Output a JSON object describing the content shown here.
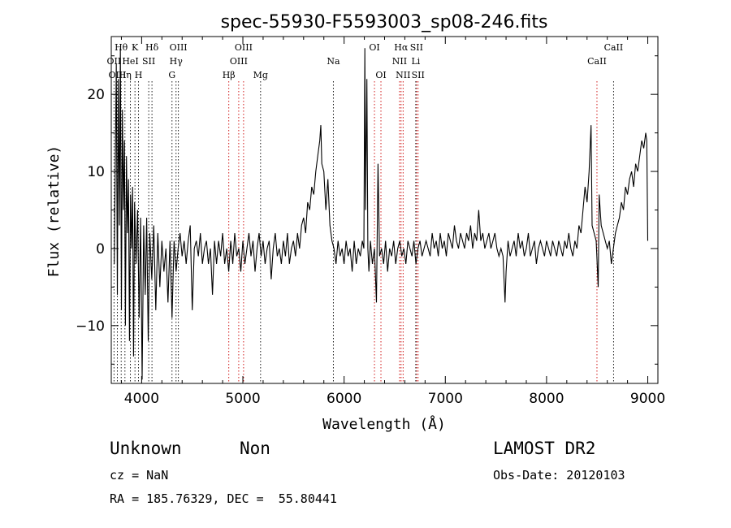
{
  "chart_data": {
    "type": "line",
    "title": "spec-55930-F5593003_sp08-246.fits",
    "xlabel": "Wavelength (Å)",
    "ylabel": "Flux (relative)",
    "xlim": [
      3700,
      9100
    ],
    "ylim": [
      -17.5,
      27.5
    ],
    "x_ticks": [
      4000,
      5000,
      6000,
      7000,
      8000,
      9000
    ],
    "y_ticks": [
      -10,
      0,
      10,
      20
    ],
    "grid": false,
    "series": [
      {
        "color": "#000000",
        "points": [
          [
            3730,
            -2
          ],
          [
            3750,
            24
          ],
          [
            3760,
            -6
          ],
          [
            3770,
            22
          ],
          [
            3780,
            3
          ],
          [
            3790,
            26
          ],
          [
            3800,
            -8
          ],
          [
            3810,
            18
          ],
          [
            3820,
            5
          ],
          [
            3830,
            14
          ],
          [
            3840,
            -10
          ],
          [
            3850,
            12
          ],
          [
            3860,
            2
          ],
          [
            3870,
            9
          ],
          [
            3880,
            -12
          ],
          [
            3890,
            7
          ],
          [
            3900,
            0
          ],
          [
            3910,
            8
          ],
          [
            3920,
            -14
          ],
          [
            3930,
            6
          ],
          [
            3945,
            -2
          ],
          [
            3960,
            5
          ],
          [
            3975,
            -9
          ],
          [
            3990,
            4
          ],
          [
            4005,
            -17
          ],
          [
            4020,
            3
          ],
          [
            4035,
            -6
          ],
          [
            4050,
            4
          ],
          [
            4065,
            -12
          ],
          [
            4080,
            2
          ],
          [
            4100,
            -4
          ],
          [
            4120,
            3
          ],
          [
            4140,
            -8
          ],
          [
            4160,
            2
          ],
          [
            4180,
            -5
          ],
          [
            4200,
            1
          ],
          [
            4220,
            -3
          ],
          [
            4240,
            0
          ],
          [
            4260,
            -7
          ],
          [
            4280,
            1
          ],
          [
            4300,
            -9
          ],
          [
            4320,
            1
          ],
          [
            4340,
            -3
          ],
          [
            4360,
            0
          ],
          [
            4380,
            2
          ],
          [
            4400,
            -1
          ],
          [
            4420,
            1
          ],
          [
            4440,
            -2
          ],
          [
            4460,
            1
          ],
          [
            4480,
            3
          ],
          [
            4500,
            -8
          ],
          [
            4520,
            0
          ],
          [
            4540,
            1
          ],
          [
            4560,
            -1
          ],
          [
            4580,
            2
          ],
          [
            4600,
            -2
          ],
          [
            4620,
            0
          ],
          [
            4640,
            1
          ],
          [
            4660,
            -2
          ],
          [
            4680,
            0
          ],
          [
            4700,
            -6
          ],
          [
            4720,
            1
          ],
          [
            4740,
            -2
          ],
          [
            4760,
            1
          ],
          [
            4780,
            -1
          ],
          [
            4800,
            2
          ],
          [
            4820,
            -2
          ],
          [
            4840,
            0
          ],
          [
            4860,
            -3
          ],
          [
            4880,
            1
          ],
          [
            4900,
            -2
          ],
          [
            4920,
            2
          ],
          [
            4940,
            -1
          ],
          [
            4960,
            0
          ],
          [
            4980,
            -3
          ],
          [
            5000,
            1
          ],
          [
            5020,
            -2
          ],
          [
            5040,
            0
          ],
          [
            5060,
            2
          ],
          [
            5080,
            -1
          ],
          [
            5100,
            1
          ],
          [
            5120,
            -3
          ],
          [
            5140,
            0
          ],
          [
            5160,
            2
          ],
          [
            5180,
            -1
          ],
          [
            5200,
            1
          ],
          [
            5220,
            -2
          ],
          [
            5240,
            0
          ],
          [
            5260,
            1
          ],
          [
            5280,
            -4
          ],
          [
            5300,
            0
          ],
          [
            5320,
            2
          ],
          [
            5340,
            -1
          ],
          [
            5360,
            0
          ],
          [
            5380,
            -2
          ],
          [
            5400,
            1
          ],
          [
            5420,
            -1
          ],
          [
            5440,
            2
          ],
          [
            5460,
            -2
          ],
          [
            5480,
            0
          ],
          [
            5500,
            1
          ],
          [
            5520,
            -1
          ],
          [
            5540,
            2
          ],
          [
            5560,
            0
          ],
          [
            5580,
            3
          ],
          [
            5600,
            4
          ],
          [
            5620,
            2
          ],
          [
            5640,
            6
          ],
          [
            5660,
            5
          ],
          [
            5680,
            8
          ],
          [
            5700,
            7
          ],
          [
            5720,
            10
          ],
          [
            5740,
            12
          ],
          [
            5760,
            14
          ],
          [
            5770,
            16
          ],
          [
            5780,
            11
          ],
          [
            5800,
            10
          ],
          [
            5820,
            5
          ],
          [
            5840,
            9
          ],
          [
            5860,
            3
          ],
          [
            5880,
            1
          ],
          [
            5900,
            0
          ],
          [
            5920,
            -2
          ],
          [
            5940,
            1
          ],
          [
            5960,
            -1
          ],
          [
            5980,
            0
          ],
          [
            6000,
            -2
          ],
          [
            6020,
            1
          ],
          [
            6040,
            -1
          ],
          [
            6060,
            0
          ],
          [
            6080,
            -3
          ],
          [
            6100,
            1
          ],
          [
            6120,
            -2
          ],
          [
            6140,
            0
          ],
          [
            6160,
            -1
          ],
          [
            6180,
            1
          ],
          [
            6195,
            0
          ],
          [
            6205,
            26
          ],
          [
            6212,
            5
          ],
          [
            6225,
            22
          ],
          [
            6235,
            0
          ],
          [
            6245,
            -3
          ],
          [
            6260,
            1
          ],
          [
            6280,
            -2
          ],
          [
            6300,
            0
          ],
          [
            6320,
            -7
          ],
          [
            6335,
            11
          ],
          [
            6350,
            -1
          ],
          [
            6370,
            0
          ],
          [
            6390,
            -2
          ],
          [
            6410,
            1
          ],
          [
            6430,
            -3
          ],
          [
            6450,
            0
          ],
          [
            6470,
            -1
          ],
          [
            6490,
            1
          ],
          [
            6510,
            -2
          ],
          [
            6530,
            0
          ],
          [
            6550,
            1
          ],
          [
            6570,
            -1
          ],
          [
            6590,
            0
          ],
          [
            6610,
            -2
          ],
          [
            6630,
            1
          ],
          [
            6650,
            0
          ],
          [
            6670,
            -1
          ],
          [
            6690,
            1
          ],
          [
            6710,
            -2
          ],
          [
            6730,
            0
          ],
          [
            6750,
            1
          ],
          [
            6770,
            -1
          ],
          [
            6790,
            0
          ],
          [
            6810,
            1
          ],
          [
            6830,
            0
          ],
          [
            6850,
            -1
          ],
          [
            6870,
            2
          ],
          [
            6890,
            0
          ],
          [
            6910,
            1
          ],
          [
            6930,
            -1
          ],
          [
            6950,
            2
          ],
          [
            6970,
            0
          ],
          [
            6990,
            1
          ],
          [
            7010,
            -1
          ],
          [
            7030,
            2
          ],
          [
            7050,
            1
          ],
          [
            7070,
            0
          ],
          [
            7090,
            3
          ],
          [
            7110,
            1
          ],
          [
            7130,
            0
          ],
          [
            7150,
            2
          ],
          [
            7170,
            1
          ],
          [
            7190,
            0
          ],
          [
            7210,
            2
          ],
          [
            7230,
            1
          ],
          [
            7250,
            3
          ],
          [
            7270,
            0
          ],
          [
            7290,
            2
          ],
          [
            7310,
            1
          ],
          [
            7330,
            5
          ],
          [
            7350,
            1
          ],
          [
            7370,
            2
          ],
          [
            7390,
            0
          ],
          [
            7410,
            1
          ],
          [
            7430,
            2
          ],
          [
            7450,
            0
          ],
          [
            7470,
            1
          ],
          [
            7490,
            2
          ],
          [
            7510,
            0
          ],
          [
            7530,
            -1
          ],
          [
            7550,
            0
          ],
          [
            7570,
            -1
          ],
          [
            7590,
            -7
          ],
          [
            7600,
            -3
          ],
          [
            7620,
            1
          ],
          [
            7640,
            -1
          ],
          [
            7660,
            0
          ],
          [
            7680,
            1
          ],
          [
            7700,
            -1
          ],
          [
            7720,
            2
          ],
          [
            7740,
            0
          ],
          [
            7760,
            1
          ],
          [
            7780,
            -1
          ],
          [
            7800,
            0
          ],
          [
            7820,
            2
          ],
          [
            7840,
            -1
          ],
          [
            7860,
            0
          ],
          [
            7880,
            1
          ],
          [
            7900,
            -2
          ],
          [
            7920,
            0
          ],
          [
            7940,
            1
          ],
          [
            7960,
            0
          ],
          [
            7980,
            -1
          ],
          [
            8000,
            1
          ],
          [
            8020,
            0
          ],
          [
            8040,
            -1
          ],
          [
            8060,
            1
          ],
          [
            8080,
            0
          ],
          [
            8100,
            -1
          ],
          [
            8120,
            1
          ],
          [
            8140,
            0
          ],
          [
            8160,
            -1
          ],
          [
            8180,
            1
          ],
          [
            8200,
            0
          ],
          [
            8220,
            2
          ],
          [
            8240,
            0
          ],
          [
            8260,
            -1
          ],
          [
            8280,
            1
          ],
          [
            8300,
            0
          ],
          [
            8320,
            3
          ],
          [
            8340,
            2
          ],
          [
            8360,
            5
          ],
          [
            8380,
            8
          ],
          [
            8400,
            6
          ],
          [
            8420,
            10
          ],
          [
            8440,
            16
          ],
          [
            8450,
            3
          ],
          [
            8470,
            2
          ],
          [
            8490,
            1
          ],
          [
            8510,
            -5
          ],
          [
            8520,
            7
          ],
          [
            8540,
            3
          ],
          [
            8560,
            2
          ],
          [
            8580,
            1
          ],
          [
            8600,
            0
          ],
          [
            8620,
            1
          ],
          [
            8640,
            -2
          ],
          [
            8660,
            0
          ],
          [
            8680,
            2
          ],
          [
            8700,
            3
          ],
          [
            8720,
            4
          ],
          [
            8740,
            6
          ],
          [
            8760,
            5
          ],
          [
            8780,
            8
          ],
          [
            8800,
            7
          ],
          [
            8820,
            9
          ],
          [
            8840,
            10
          ],
          [
            8860,
            8
          ],
          [
            8880,
            11
          ],
          [
            8900,
            10
          ],
          [
            8920,
            12
          ],
          [
            8940,
            14
          ],
          [
            8960,
            13
          ],
          [
            8980,
            15
          ],
          [
            8990,
            14
          ],
          [
            9000,
            1
          ]
        ]
      }
    ],
    "lines": [
      {
        "label": "Hθ",
        "x": 3798,
        "row": 0,
        "color": "#000000"
      },
      {
        "label": "K",
        "x": 3934,
        "row": 0,
        "color": "#000000"
      },
      {
        "label": "Hδ",
        "x": 4102,
        "row": 0,
        "color": "#000000"
      },
      {
        "label": "OII",
        "x": 3727,
        "row": 1,
        "color": "#000000"
      },
      {
        "label": "HeI",
        "x": 3889,
        "row": 1,
        "color": "#000000"
      },
      {
        "label": "SII",
        "x": 4070,
        "row": 1,
        "color": "#000000"
      },
      {
        "label": "OIII",
        "x": 3760,
        "row": 2,
        "color": "#000000"
      },
      {
        "label": "Hη",
        "x": 3835,
        "row": 2,
        "color": "#000000"
      },
      {
        "label": "H",
        "x": 3969,
        "row": 2,
        "color": "#000000"
      },
      {
        "label": "OIII",
        "x": 4363,
        "row": 0,
        "color": "#000000"
      },
      {
        "label": "Hγ",
        "x": 4340,
        "row": 1,
        "color": "#000000"
      },
      {
        "label": "G",
        "x": 4300,
        "row": 2,
        "color": "#000000"
      },
      {
        "label": "OIII",
        "x": 5007,
        "row": 0,
        "color": "#cc0000"
      },
      {
        "label": "OIII",
        "x": 4959,
        "row": 1,
        "color": "#cc0000"
      },
      {
        "label": "Hβ",
        "x": 4861,
        "row": 2,
        "color": "#cc0000"
      },
      {
        "label": "Mg",
        "x": 5175,
        "row": 2,
        "color": "#000000"
      },
      {
        "label": "Na",
        "x": 5894,
        "row": 1,
        "color": "#000000"
      },
      {
        "label": "OI",
        "x": 6300,
        "row": 0,
        "color": "#cc0000"
      },
      {
        "label": "OI",
        "x": 6364,
        "row": 2,
        "color": "#cc0000"
      },
      {
        "label": "Hα",
        "x": 6563,
        "row": 0,
        "color": "#cc0000"
      },
      {
        "label": "SII",
        "x": 6716,
        "row": 0,
        "color": "#cc0000"
      },
      {
        "label": "NII",
        "x": 6548,
        "row": 1,
        "color": "#cc0000"
      },
      {
        "label": "Li",
        "x": 6708,
        "row": 1,
        "color": "#000000"
      },
      {
        "label": "NII",
        "x": 6583,
        "row": 2,
        "color": "#cc0000"
      },
      {
        "label": "SII",
        "x": 6731,
        "row": 2,
        "color": "#cc0000"
      },
      {
        "label": "CaII",
        "x": 8662,
        "row": 0,
        "color": "#000000"
      },
      {
        "label": "CaII",
        "x": 8498,
        "row": 1,
        "color": "#cc0000"
      }
    ]
  },
  "info": {
    "classification": "Unknown",
    "subclass": "Non",
    "redshift": "cz = NaN",
    "coords": "RA = 185.76329, DEC =  55.80441",
    "survey": "LAMOST DR2",
    "obs_date": "Obs-Date: 20120103"
  }
}
